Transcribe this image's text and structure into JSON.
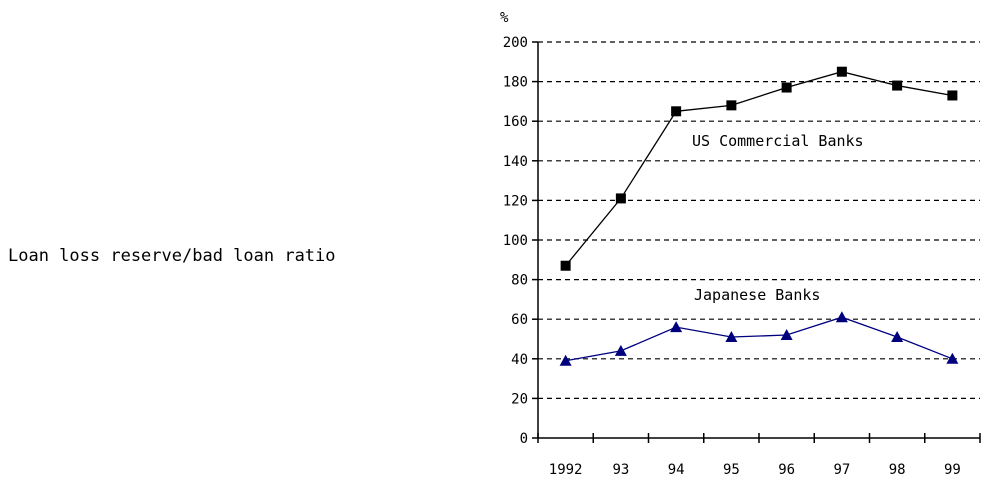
{
  "side_label": "Loan loss reserve/bad loan ratio",
  "chart_data": {
    "type": "line",
    "ylabel": "%",
    "xlabel": "",
    "ylim": [
      0,
      200
    ],
    "yticks": [
      0,
      20,
      40,
      60,
      80,
      100,
      120,
      140,
      160,
      180,
      200
    ],
    "categories": [
      "1992",
      "93",
      "94",
      "95",
      "96",
      "97",
      "98",
      "99"
    ],
    "grid": "horizontal-dashed",
    "legend": "none",
    "series": [
      {
        "name": "US Commercial Banks",
        "marker": "square",
        "line_color": "#000000",
        "marker_color": "#000000",
        "values": [
          87,
          121,
          165,
          168,
          177,
          185,
          178,
          173
        ]
      },
      {
        "name": "Japanese Banks",
        "marker": "triangle",
        "line_color": "#00007f",
        "marker_color": "#00007f",
        "values": [
          39,
          44,
          56,
          51,
          52,
          61,
          51,
          40
        ]
      }
    ]
  }
}
